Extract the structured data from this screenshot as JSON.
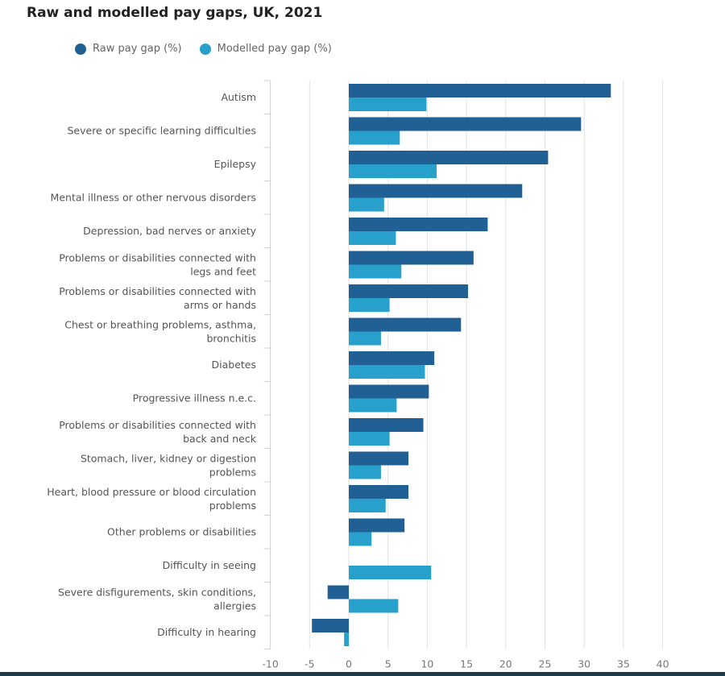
{
  "chart_data": {
    "type": "bar",
    "orientation": "horizontal",
    "title": "Raw and modelled pay gaps, UK, 2021",
    "legend_position": "top-left",
    "grid": true,
    "xlim": [
      -10,
      40
    ],
    "x_ticks": [
      "-10",
      "-5",
      "0",
      "5",
      "10",
      "15",
      "20",
      "25",
      "30",
      "35",
      "40"
    ],
    "categories": [
      [
        "Autism"
      ],
      [
        "Severe or specific learning difficulties"
      ],
      [
        "Epilepsy"
      ],
      [
        "Mental illness or other nervous disorders"
      ],
      [
        "Depression, bad nerves or anxiety"
      ],
      [
        "Problems or disabilities connected with",
        "legs and feet"
      ],
      [
        "Problems or disabilities connected with",
        "arms or hands"
      ],
      [
        "Chest or breathing problems, asthma,",
        "bronchitis"
      ],
      [
        "Diabetes"
      ],
      [
        "Progressive illness n.e.c."
      ],
      [
        "Problems or disabilities connected with",
        "back and neck"
      ],
      [
        "Stomach, liver, kidney or digestion",
        "problems"
      ],
      [
        "Heart, blood pressure or blood circulation",
        "problems"
      ],
      [
        "Other problems or disabilities"
      ],
      [
        "Difficulty in seeing"
      ],
      [
        "Severe disfigurements, skin conditions,",
        "allergies"
      ],
      [
        "Difficulty in hearing"
      ]
    ],
    "series": [
      {
        "name": "Raw pay gap (%)",
        "color": "#206095",
        "values": [
          33.4,
          29.6,
          25.4,
          22.1,
          17.7,
          15.9,
          15.2,
          14.3,
          10.9,
          10.2,
          9.5,
          7.6,
          7.6,
          7.1,
          null,
          -2.7,
          -4.7
        ]
      },
      {
        "name": "Modelled pay gap (%)",
        "color": "#27a0cc",
        "values": [
          9.9,
          6.5,
          11.2,
          4.5,
          6.0,
          6.7,
          5.2,
          4.1,
          9.7,
          6.1,
          5.2,
          4.1,
          4.7,
          2.9,
          10.5,
          6.3,
          -0.6
        ]
      }
    ]
  }
}
